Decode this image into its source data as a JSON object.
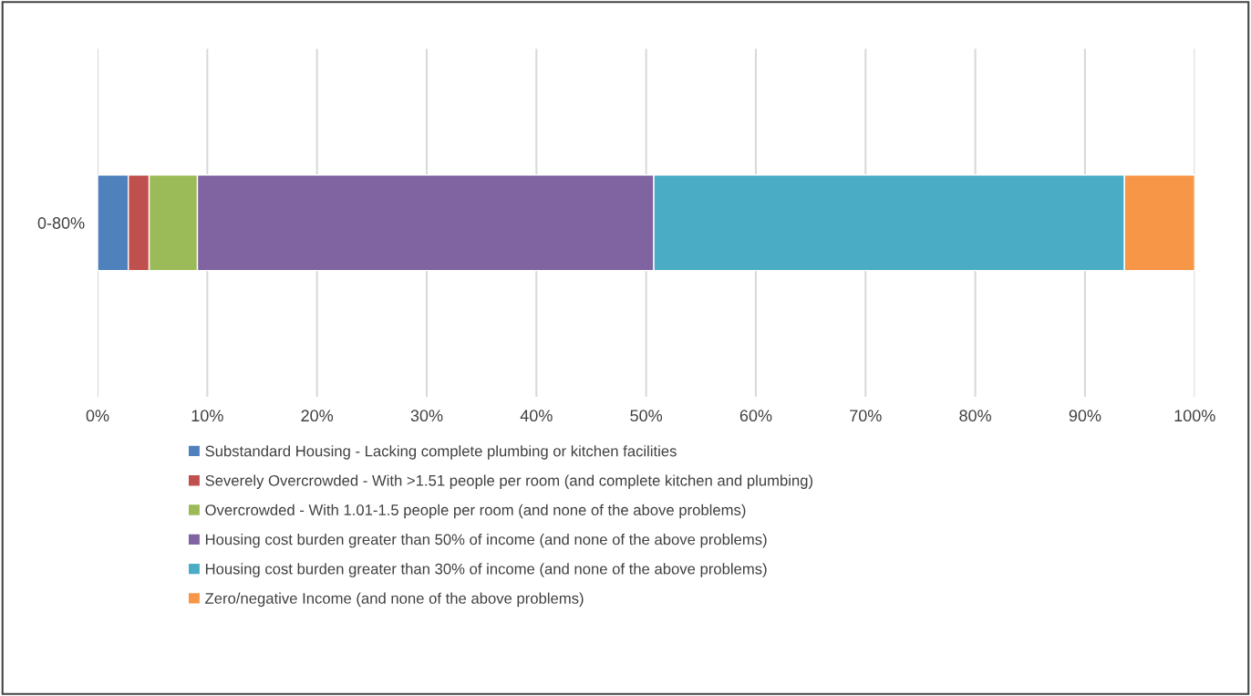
{
  "chart_data": {
    "type": "bar",
    "orientation": "horizontal",
    "stacked": true,
    "categories": [
      "0-80%"
    ],
    "series": [
      {
        "name": "Substandard Housing - Lacking complete plumbing or kitchen facilities",
        "color": "#4f81bd",
        "values": [
          2.8
        ]
      },
      {
        "name": "Severely Overcrowded - With >1.51 people per room (and complete kitchen and plumbing)",
        "color": "#c0504d",
        "values": [
          1.9
        ]
      },
      {
        "name": "Overcrowded - With 1.01-1.5 people per room (and none of the above problems)",
        "color": "#9bbb59",
        "values": [
          4.4
        ]
      },
      {
        "name": "Housing cost burden greater than 50% of income (and none of the above problems)",
        "color": "#8064a2",
        "values": [
          41.6
        ]
      },
      {
        "name": "Housing cost burden greater than 30% of income (and none of the above problems)",
        "color": "#4bacc6",
        "values": [
          42.9
        ]
      },
      {
        "name": "Zero/negative Income (and none of the above problems)",
        "color": "#f79646",
        "values": [
          6.4
        ]
      }
    ],
    "xlim": [
      0,
      100
    ],
    "xticks": [
      {
        "value": 0,
        "label": "0%"
      },
      {
        "value": 10,
        "label": "10%"
      },
      {
        "value": 20,
        "label": "20%"
      },
      {
        "value": 30,
        "label": "30%"
      },
      {
        "value": 40,
        "label": "40%"
      },
      {
        "value": 50,
        "label": "50%"
      },
      {
        "value": 60,
        "label": "60%"
      },
      {
        "value": 70,
        "label": "70%"
      },
      {
        "value": 80,
        "label": "80%"
      },
      {
        "value": 90,
        "label": "90%"
      },
      {
        "value": 100,
        "label": "100%"
      }
    ],
    "grid": "x",
    "legend": "bottom"
  }
}
